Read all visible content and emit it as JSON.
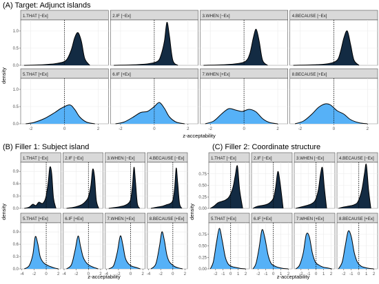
{
  "colors": {
    "ex_minus_fill": "#132b43",
    "ex_plus_fill": "#56b1f7",
    "strip_bg": "#d9d9d9",
    "panel_bg": "#ffffff",
    "grid": "#ebebeb",
    "outline": "#000000"
  },
  "chart_data": [
    {
      "type": "area",
      "title": "(A) Target: Adjunct islands",
      "xlabel": "z-acceptability",
      "ylabel": "density",
      "xlim": [
        -2.6,
        2.6
      ],
      "ylim": [
        0,
        1.32
      ],
      "xticks": [
        -2,
        0,
        2
      ],
      "yticks": [
        0.0,
        0.5,
        1.0
      ],
      "ytick_labels": [
        "0.0",
        "0.5",
        "1.0"
      ],
      "reference_line_x": 0,
      "grid": true,
      "facets": [
        {
          "label": "1.THAT [−Ex]",
          "condition": "-Ex",
          "x": [
            -2.4,
            -1.2,
            -0.4,
            0.1,
            0.4,
            0.6,
            0.8,
            1.0,
            1.2,
            1.5
          ],
          "y": [
            0.0,
            0.02,
            0.06,
            0.15,
            0.45,
            0.8,
            0.95,
            0.7,
            0.2,
            0.0
          ]
        },
        {
          "label": "2.IF [−Ex]",
          "condition": "-Ex",
          "x": [
            -2.4,
            -1.0,
            -0.3,
            0.2,
            0.4,
            0.6,
            0.75,
            0.9,
            1.1,
            1.4
          ],
          "y": [
            0.0,
            0.02,
            0.05,
            0.12,
            0.3,
            0.7,
            1.25,
            0.85,
            0.15,
            0.0
          ]
        },
        {
          "label": "3.WHEN [−Ex]",
          "condition": "-Ex",
          "x": [
            -2.4,
            -1.1,
            -0.4,
            0.1,
            0.35,
            0.55,
            0.72,
            0.9,
            1.1,
            1.4
          ],
          "y": [
            0.0,
            0.02,
            0.05,
            0.12,
            0.35,
            0.8,
            1.05,
            0.7,
            0.15,
            0.0
          ]
        },
        {
          "label": "4.BECAUSE [−Ex]",
          "condition": "-Ex",
          "x": [
            -2.4,
            -1.0,
            -0.3,
            0.2,
            0.4,
            0.6,
            0.8,
            1.0,
            1.2,
            1.5
          ],
          "y": [
            0.0,
            0.02,
            0.05,
            0.15,
            0.4,
            0.8,
            1.0,
            0.6,
            0.15,
            0.0
          ]
        },
        {
          "label": "5.THAT [+Ex]",
          "condition": "+Ex",
          "x": [
            -2.3,
            -1.8,
            -1.2,
            -0.6,
            -0.2,
            0.3,
            0.6,
            0.9,
            1.3,
            1.8
          ],
          "y": [
            0.0,
            0.04,
            0.15,
            0.32,
            0.45,
            0.55,
            0.42,
            0.2,
            0.05,
            0.0
          ]
        },
        {
          "label": "6.IF [+Ex]",
          "condition": "+Ex",
          "x": [
            -2.3,
            -1.8,
            -1.3,
            -0.8,
            -0.4,
            0.0,
            0.3,
            0.6,
            0.9,
            1.3,
            1.8
          ],
          "y": [
            0.0,
            0.05,
            0.18,
            0.33,
            0.36,
            0.5,
            0.62,
            0.45,
            0.2,
            0.05,
            0.0
          ]
        },
        {
          "label": "7.WHEN [+Ex]",
          "condition": "+Ex",
          "x": [
            -2.3,
            -1.8,
            -1.3,
            -0.9,
            -0.5,
            -0.1,
            0.3,
            0.7,
            1.1,
            1.5,
            2.0
          ],
          "y": [
            0.0,
            0.08,
            0.3,
            0.44,
            0.4,
            0.36,
            0.42,
            0.35,
            0.15,
            0.04,
            0.0
          ]
        },
        {
          "label": "8.BECAUSE [+Ex]",
          "condition": "+Ex",
          "x": [
            -2.3,
            -1.8,
            -1.3,
            -0.9,
            -0.5,
            -0.2,
            0.2,
            0.6,
            1.0,
            1.5,
            2.0
          ],
          "y": [
            0.0,
            0.08,
            0.28,
            0.48,
            0.58,
            0.55,
            0.38,
            0.28,
            0.12,
            0.03,
            0.0
          ]
        }
      ]
    },
    {
      "type": "area",
      "title": "(B) Filler 1: Subject island",
      "xlabel": "z-acceptability",
      "ylabel": "density",
      "xlim": [
        -4.2,
        2.4
      ],
      "ylim": [
        0,
        1.12
      ],
      "xticks": [
        -4,
        -2,
        0,
        2
      ],
      "yticks": [
        0.0,
        0.3,
        0.6,
        0.9
      ],
      "ytick_labels": [
        "0.0",
        "0.3",
        "0.6",
        "0.9"
      ],
      "reference_line_x": 0,
      "grid": true,
      "facets": [
        {
          "label": "1.THAT [−Ex]",
          "condition": "-Ex",
          "x": [
            -3.6,
            -2.8,
            -2.2,
            -1.7,
            -1.2,
            -0.6,
            -0.1,
            0.3,
            0.6,
            0.9,
            1.2,
            1.6
          ],
          "y": [
            0.0,
            0.03,
            0.1,
            0.07,
            0.15,
            0.12,
            0.25,
            0.6,
            1.0,
            0.85,
            0.25,
            0.0
          ]
        },
        {
          "label": "2.IF [−Ex]",
          "condition": "-Ex",
          "x": [
            -3.6,
            -2.6,
            -1.8,
            -1.0,
            -0.4,
            0.0,
            0.4,
            0.7,
            1.0,
            1.3,
            1.7
          ],
          "y": [
            0.0,
            0.02,
            0.05,
            0.1,
            0.18,
            0.28,
            0.55,
            0.95,
            0.78,
            0.2,
            0.0
          ]
        },
        {
          "label": "3.WHEN [−Ex]",
          "condition": "-Ex",
          "x": [
            -3.6,
            -2.6,
            -1.8,
            -1.0,
            -0.4,
            0.0,
            0.3,
            0.55,
            0.8,
            1.1,
            1.5
          ],
          "y": [
            0.0,
            0.02,
            0.04,
            0.07,
            0.12,
            0.22,
            0.55,
            1.0,
            0.65,
            0.12,
            0.0
          ]
        },
        {
          "label": "4.BECAUSE [−Ex]",
          "condition": "-Ex",
          "x": [
            -3.6,
            -2.6,
            -1.8,
            -1.0,
            -0.4,
            0.0,
            0.3,
            0.55,
            0.8,
            1.1,
            1.5
          ],
          "y": [
            0.0,
            0.03,
            0.05,
            0.09,
            0.12,
            0.2,
            0.5,
            0.98,
            0.62,
            0.12,
            0.0
          ]
        },
        {
          "label": "5.THAT [+Ex]",
          "condition": "+Ex",
          "x": [
            -3.6,
            -2.8,
            -2.2,
            -1.8,
            -1.4,
            -1.0,
            -0.6,
            -0.2,
            0.3,
            0.8,
            1.4,
            2.0
          ],
          "y": [
            0.0,
            0.08,
            0.35,
            0.78,
            0.62,
            0.3,
            0.18,
            0.12,
            0.08,
            0.05,
            0.02,
            0.0
          ]
        },
        {
          "label": "6.IF [+Ex]",
          "condition": "+Ex",
          "x": [
            -3.6,
            -2.8,
            -2.2,
            -1.7,
            -1.3,
            -0.9,
            -0.5,
            0.0,
            0.5,
            1.0,
            1.6
          ],
          "y": [
            0.0,
            0.1,
            0.45,
            0.8,
            0.55,
            0.3,
            0.18,
            0.1,
            0.06,
            0.03,
            0.0
          ]
        },
        {
          "label": "7.WHEN [+Ex]",
          "condition": "+Ex",
          "x": [
            -3.6,
            -2.8,
            -2.2,
            -1.7,
            -1.3,
            -0.9,
            -0.5,
            0.0,
            0.5,
            1.0,
            1.6
          ],
          "y": [
            0.0,
            0.08,
            0.4,
            0.8,
            0.6,
            0.28,
            0.15,
            0.08,
            0.05,
            0.03,
            0.0
          ]
        },
        {
          "label": "8.BECAUSE [+Ex]",
          "condition": "+Ex",
          "x": [
            -3.6,
            -2.8,
            -2.2,
            -1.8,
            -1.4,
            -1.0,
            -0.6,
            -0.1,
            0.4,
            1.0,
            1.6
          ],
          "y": [
            0.0,
            0.12,
            0.55,
            0.9,
            0.7,
            0.35,
            0.18,
            0.1,
            0.05,
            0.02,
            0.0
          ]
        }
      ]
    },
    {
      "type": "area",
      "title": "(C) Filler 2: Coordinate structure",
      "xlabel": "z-acceptability",
      "ylabel": "density",
      "xlim": [
        -2.9,
        2.5
      ],
      "ylim": [
        0,
        1.0
      ],
      "xticks": [
        -2,
        -1,
        0,
        1,
        2
      ],
      "yticks": [
        0.0,
        0.25,
        0.5,
        0.75
      ],
      "ytick_labels": [
        "0.00",
        "0.25",
        "0.50",
        "0.75"
      ],
      "reference_line_x": 0,
      "grid": true,
      "facets": [
        {
          "label": "1.THAT [−Ex]",
          "condition": "-Ex",
          "x": [
            -2.7,
            -2.2,
            -1.7,
            -1.2,
            -0.7,
            -0.2,
            0.3,
            0.6,
            0.9,
            1.2,
            1.6
          ],
          "y": [
            0.0,
            0.05,
            0.12,
            0.15,
            0.18,
            0.25,
            0.45,
            0.7,
            0.92,
            0.4,
            0.0
          ]
        },
        {
          "label": "2.IF [−Ex]",
          "condition": "-Ex",
          "x": [
            -2.7,
            -2.2,
            -1.6,
            -1.0,
            -0.5,
            0.0,
            0.3,
            0.6,
            0.9,
            1.3
          ],
          "y": [
            0.0,
            0.04,
            0.06,
            0.08,
            0.12,
            0.22,
            0.45,
            0.8,
            0.55,
            0.0
          ]
        },
        {
          "label": "3.WHEN [−Ex]",
          "condition": "-Ex",
          "x": [
            -2.7,
            -2.0,
            -1.3,
            -0.6,
            -0.1,
            0.3,
            0.6,
            0.85,
            1.1,
            1.4
          ],
          "y": [
            0.0,
            0.03,
            0.06,
            0.1,
            0.18,
            0.4,
            0.75,
            0.88,
            0.45,
            0.0
          ]
        },
        {
          "label": "4.BECAUSE [−Ex]",
          "condition": "-Ex",
          "x": [
            -2.7,
            -2.0,
            -1.3,
            -0.6,
            -0.1,
            0.4,
            0.75,
            1.0,
            1.3,
            1.6
          ],
          "y": [
            0.0,
            0.03,
            0.05,
            0.08,
            0.15,
            0.4,
            0.75,
            0.95,
            0.4,
            0.0
          ]
        },
        {
          "label": "5.THAT [+Ex]",
          "condition": "+Ex",
          "x": [
            -2.7,
            -2.3,
            -1.9,
            -1.5,
            -1.1,
            -0.7,
            -0.3,
            0.2,
            0.7,
            1.3,
            2.0
          ],
          "y": [
            0.0,
            0.15,
            0.55,
            0.88,
            0.6,
            0.25,
            0.1,
            0.05,
            0.03,
            0.01,
            0.0
          ]
        },
        {
          "label": "6.IF [+Ex]",
          "condition": "+Ex",
          "x": [
            -2.7,
            -2.3,
            -1.9,
            -1.5,
            -1.1,
            -0.7,
            -0.3,
            0.2,
            0.7,
            1.3,
            2.0
          ],
          "y": [
            0.0,
            0.12,
            0.45,
            0.85,
            0.65,
            0.3,
            0.12,
            0.06,
            0.03,
            0.01,
            0.0
          ]
        },
        {
          "label": "7.WHEN [+Ex]",
          "condition": "+Ex",
          "x": [
            -2.7,
            -2.2,
            -1.7,
            -1.3,
            -0.9,
            -0.5,
            -0.1,
            0.4,
            0.9,
            1.5,
            2.1
          ],
          "y": [
            0.0,
            0.08,
            0.35,
            0.75,
            0.7,
            0.35,
            0.15,
            0.08,
            0.04,
            0.02,
            0.0
          ]
        },
        {
          "label": "8.BECAUSE [+Ex]",
          "condition": "+Ex",
          "x": [
            -2.7,
            -2.2,
            -1.8,
            -1.4,
            -1.0,
            -0.6,
            -0.2,
            0.3,
            0.8,
            1.4,
            2.0
          ],
          "y": [
            0.0,
            0.15,
            0.5,
            0.82,
            0.7,
            0.35,
            0.15,
            0.06,
            0.03,
            0.01,
            0.0
          ]
        }
      ]
    }
  ]
}
